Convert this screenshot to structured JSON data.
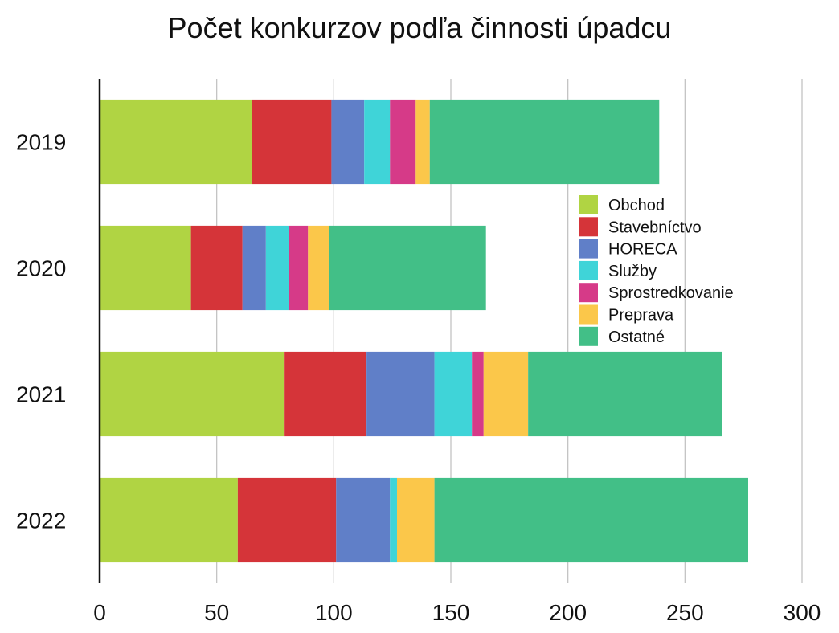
{
  "chart_data": {
    "type": "bar",
    "orientation": "horizontal",
    "stacked": true,
    "title": "Počet konkurzov podľa činnosti úpadcu",
    "categories": [
      "2019",
      "2020",
      "2021",
      "2022"
    ],
    "xlim": [
      0,
      300
    ],
    "xticks": [
      0,
      50,
      100,
      150,
      200,
      250,
      300
    ],
    "xtick_labels": [
      "0",
      "50",
      "100",
      "150",
      "200",
      "250",
      "300"
    ],
    "grid": "vertical",
    "legend_position": "inside-right",
    "series": [
      {
        "name": "Obchod",
        "color": "#b0d443",
        "values": [
          65,
          39,
          79,
          59
        ]
      },
      {
        "name": "Stavebníctvo",
        "color": "#d53439",
        "values": [
          34,
          22,
          35,
          42
        ]
      },
      {
        "name": "HORECA",
        "color": "#607fc8",
        "values": [
          14,
          10,
          29,
          23
        ]
      },
      {
        "name": "Služby",
        "color": "#3fd4d8",
        "values": [
          11,
          10,
          16,
          3
        ]
      },
      {
        "name": "Sprostredkovanie",
        "color": "#d63a88",
        "values": [
          11,
          8,
          5,
          0
        ]
      },
      {
        "name": "Preprava",
        "color": "#fbc74a",
        "values": [
          6,
          9,
          19,
          16
        ]
      },
      {
        "name": "Ostatné",
        "color": "#42bf87",
        "values": [
          98,
          67,
          83,
          134
        ]
      }
    ]
  }
}
